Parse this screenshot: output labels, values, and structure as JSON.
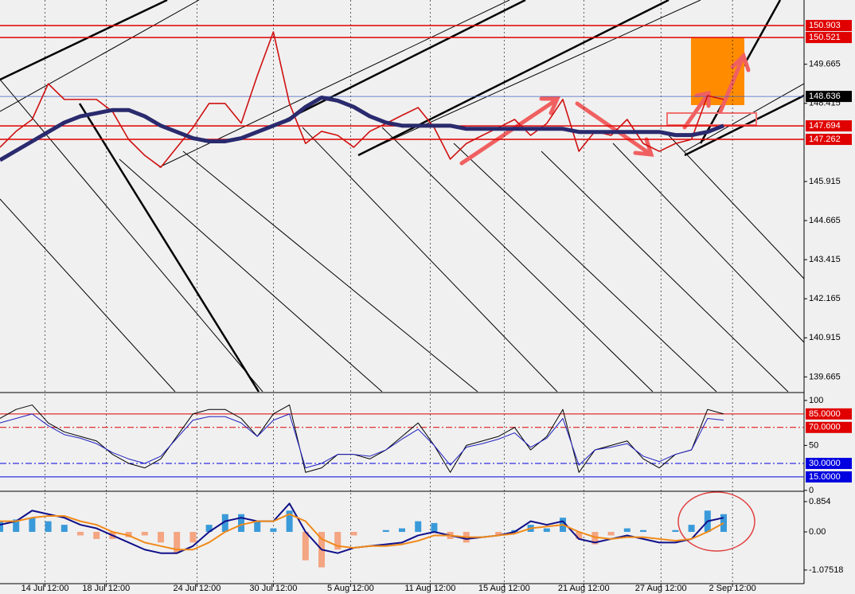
{
  "chart_data": [
    {
      "type": "line",
      "x": [
        0,
        2,
        4,
        6,
        8,
        10,
        12,
        14,
        16,
        18,
        20,
        22,
        24,
        26,
        28,
        30,
        32,
        34,
        36,
        38,
        40,
        42,
        44,
        46,
        48,
        50,
        52,
        54,
        56,
        58,
        60,
        62,
        64,
        66,
        68,
        70,
        72,
        74,
        76,
        78,
        80,
        82,
        84,
        86,
        88,
        90
      ],
      "xlim": [
        0,
        100
      ],
      "xticks": [
        {
          "value": 5.6,
          "label": "14 Jul 12:00"
        },
        {
          "value": 13.2,
          "label": "18 Jul 12:00"
        },
        {
          "value": 24.5,
          "label": "24 Jul 12:00"
        },
        {
          "value": 34,
          "label": "30 Jul 12:00"
        },
        {
          "value": 43.6,
          "label": "5 Aug 12:00"
        },
        {
          "value": 53.5,
          "label": "11 Aug 12:00"
        },
        {
          "value": 62.7,
          "label": "15 Aug 12:00"
        },
        {
          "value": 72.6,
          "label": "21 Aug 12:00"
        },
        {
          "value": 82.2,
          "label": "27 Aug 12:00"
        },
        {
          "value": 91.1,
          "label": "2 Sep 12:00"
        }
      ],
      "ylim": [
        139.19,
        151.72
      ],
      "yticks": [
        149.665,
        148.415,
        145.915,
        144.665,
        143.415,
        142.165,
        140.915,
        139.665
      ],
      "levels": [
        {
          "value": 150.903,
          "color": "#e00000"
        },
        {
          "value": 150.521,
          "color": "#e00000"
        },
        {
          "value": 147.694,
          "color": "#e00000"
        },
        {
          "value": 147.262,
          "color": "#e00000"
        }
      ],
      "last_price": 148.636,
      "series": [
        {
          "color": "#d01010",
          "width": 1.6,
          "values": [
            147.01,
            147.52,
            147.9,
            149.04,
            148.54,
            148.54,
            148.54,
            148.15,
            147.26,
            146.75,
            146.37,
            147.01,
            147.64,
            148.41,
            148.41,
            147.78,
            149.3,
            150.7,
            148.41,
            147.13,
            147.52,
            147.39,
            147.01,
            147.52,
            147.77,
            148.03,
            148.28,
            147.64,
            146.63,
            147.13,
            147.39,
            147.64,
            147.9,
            147.39,
            147.77,
            148.54,
            146.88,
            147.52,
            147.39,
            147.9,
            147.13,
            146.88,
            147.13,
            147.26,
            148.66,
            148.54
          ]
        },
        {
          "color": "#2a2a6e",
          "width": 5,
          "values": [
            146.6,
            146.9,
            147.2,
            147.5,
            147.8,
            148.0,
            148.1,
            148.2,
            148.2,
            148.0,
            147.7,
            147.5,
            147.3,
            147.2,
            147.2,
            147.3,
            147.5,
            147.7,
            147.9,
            148.3,
            148.6,
            148.5,
            148.3,
            148.0,
            147.8,
            147.7,
            147.7,
            147.7,
            147.7,
            147.6,
            147.6,
            147.6,
            147.6,
            147.6,
            147.6,
            147.6,
            147.5,
            147.5,
            147.5,
            147.5,
            147.5,
            147.5,
            147.4,
            147.4,
            147.5,
            147.7
          ]
        }
      ]
    },
    {
      "type": "line",
      "x": [
        0,
        2,
        4,
        6,
        8,
        10,
        12,
        14,
        16,
        18,
        20,
        22,
        24,
        26,
        28,
        30,
        32,
        34,
        36,
        38,
        40,
        42,
        44,
        46,
        48,
        50,
        52,
        54,
        56,
        58,
        60,
        62,
        64,
        66,
        68,
        70,
        72,
        74,
        76,
        78,
        80,
        82,
        84,
        86,
        88,
        90
      ],
      "xlim": [
        0,
        100
      ],
      "ylim": [
        -1,
        107
      ],
      "yticks": [
        100,
        50,
        0
      ],
      "levels": [
        {
          "value": 85,
          "label": "85.0000",
          "color": "#e00000"
        },
        {
          "value": 70,
          "label": "70.0000",
          "color": "#e00000"
        },
        {
          "value": 30,
          "label": "30.0000",
          "color": "#0000e0"
        },
        {
          "value": 15,
          "label": "15.0000",
          "color": "#0000e0"
        }
      ],
      "series": [
        {
          "color": "#000000",
          "width": 1,
          "values": [
            80,
            90,
            95,
            75,
            65,
            60,
            55,
            40,
            30,
            25,
            35,
            60,
            85,
            90,
            90,
            80,
            60,
            85,
            95,
            20,
            25,
            40,
            40,
            35,
            45,
            60,
            75,
            50,
            20,
            50,
            55,
            60,
            70,
            45,
            60,
            90,
            20,
            45,
            50,
            55,
            35,
            25,
            40,
            45,
            90,
            85
          ]
        },
        {
          "color": "#2020c0",
          "width": 1,
          "values": [
            75,
            80,
            85,
            72,
            62,
            58,
            52,
            42,
            35,
            30,
            38,
            58,
            78,
            82,
            82,
            75,
            60,
            78,
            85,
            25,
            30,
            40,
            40,
            38,
            45,
            57,
            68,
            50,
            28,
            48,
            52,
            57,
            64,
            48,
            58,
            80,
            28,
            45,
            48,
            52,
            38,
            32,
            40,
            45,
            80,
            78
          ]
        }
      ]
    },
    {
      "type": "macd",
      "x": [
        0,
        2,
        4,
        6,
        8,
        10,
        12,
        14,
        16,
        18,
        20,
        22,
        24,
        26,
        28,
        30,
        32,
        34,
        36,
        38,
        40,
        42,
        44,
        46,
        48,
        50,
        52,
        54,
        56,
        58,
        60,
        62,
        64,
        66,
        68,
        70,
        72,
        74,
        76,
        78,
        80,
        82,
        84,
        86,
        88,
        90
      ],
      "xlim": [
        0,
        100
      ],
      "ylim": [
        -1.46,
        1.1
      ],
      "yticks": [
        0.854,
        {
          "value": 0,
          "label": "0.00"
        },
        -1.07518
      ],
      "positive_color": "#3a9ad9",
      "negative_color": "#f4a582",
      "histogram": [
        0.3,
        0.35,
        0.4,
        0.3,
        0.2,
        -0.1,
        -0.2,
        -0.2,
        -0.15,
        -0.1,
        -0.3,
        -0.6,
        -0.3,
        0.2,
        0.5,
        0.5,
        0.3,
        0.1,
        0.6,
        -0.8,
        -1.0,
        -0.5,
        -0.1,
        0,
        0.05,
        0.1,
        0.3,
        0.25,
        -0.2,
        -0.3,
        0,
        -0.1,
        0.05,
        0.2,
        0.1,
        0.4,
        -0.2,
        -0.35,
        -0.1,
        0.1,
        0.05,
        0,
        0.05,
        0.2,
        0.6,
        0.5
      ],
      "series": [
        {
          "color": "#10108a",
          "width": 2,
          "values": [
            0.2,
            0.3,
            0.6,
            0.5,
            0.4,
            0.2,
            0.1,
            -0.1,
            -0.3,
            -0.5,
            -0.6,
            -0.6,
            -0.4,
            0,
            0.3,
            0.4,
            0.3,
            0.3,
            0.8,
            0,
            -0.5,
            -0.6,
            -0.45,
            -0.4,
            -0.35,
            -0.3,
            -0.1,
            0,
            -0.1,
            -0.2,
            -0.15,
            -0.1,
            0,
            0.3,
            0.2,
            0.3,
            -0.2,
            -0.3,
            -0.2,
            -0.1,
            -0.2,
            -0.3,
            -0.3,
            -0.2,
            0.3,
            0.4
          ]
        },
        {
          "color": "#f08a1a",
          "width": 2,
          "values": [
            0.3,
            0.3,
            0.4,
            0.45,
            0.45,
            0.3,
            0.2,
            0,
            -0.1,
            -0.3,
            -0.4,
            -0.5,
            -0.5,
            -0.3,
            0,
            0.2,
            0.3,
            0.3,
            0.5,
            0.3,
            -0.2,
            -0.4,
            -0.45,
            -0.4,
            -0.4,
            -0.35,
            -0.25,
            -0.1,
            -0.1,
            -0.15,
            -0.15,
            -0.1,
            -0.05,
            0.1,
            0.15,
            0.2,
            0,
            -0.15,
            -0.2,
            -0.15,
            -0.15,
            -0.2,
            -0.25,
            -0.2,
            0,
            0.25
          ]
        }
      ]
    }
  ]
}
